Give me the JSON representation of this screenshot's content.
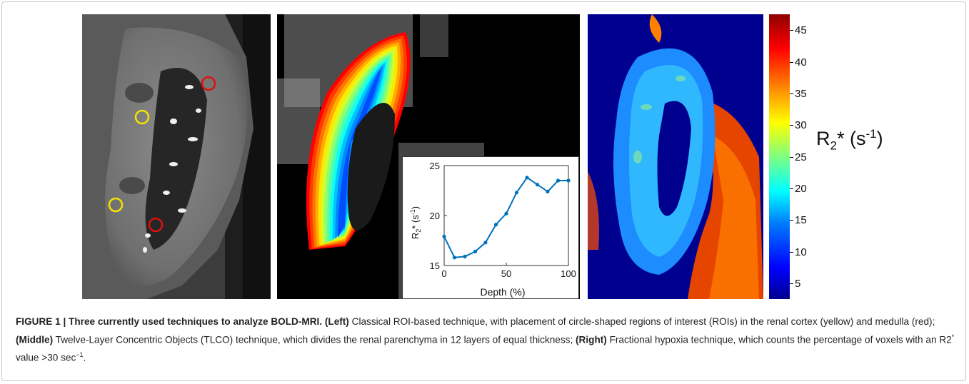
{
  "colorbar": {
    "ticks": [
      "45",
      "40",
      "35",
      "30",
      "25",
      "20",
      "15",
      "10",
      "5"
    ],
    "label_main": "R",
    "label_sub": "2",
    "label_mid": "* (s",
    "label_sup": "-1",
    "label_end": ")"
  },
  "inset_chart": {
    "xlabel": "Depth (%)",
    "ylabel_main": "R",
    "ylabel_sub": "2",
    "ylabel_mid": "* (s",
    "ylabel_sup": "-1",
    "ylabel_end": ")",
    "xticks": [
      "0",
      "50",
      "100"
    ],
    "yticks": [
      "15",
      "20",
      "25"
    ]
  },
  "chart_data": {
    "type": "line",
    "x": [
      0,
      8.3,
      16.7,
      25,
      33.3,
      41.7,
      50,
      58.3,
      66.7,
      75,
      83.3,
      91.7,
      100
    ],
    "series": [
      {
        "values": [
          17.9,
          15.8,
          15.9,
          16.4,
          17.3,
          19.1,
          20.2,
          22.3,
          23.8,
          23.1,
          22.4,
          23.5,
          23.5
        ]
      }
    ],
    "xlabel": "Depth (%)",
    "ylabel": "R2* (s-1)",
    "xlim": [
      0,
      100
    ],
    "ylim": [
      15,
      25
    ],
    "color": "#0072bd"
  },
  "caption": {
    "lead": "FIGURE 1 | Three currently used techniques to analyze BOLD-MRI.",
    "left_tag": "(Left)",
    "left_text": " Classical ROI-based technique, with placement of circle-shaped regions of interest (ROIs) in the renal cortex (yellow) and medulla (red); ",
    "middle_tag": "(Middle)",
    "middle_text": " Twelve-Layer Concentric Objects (TLCO) technique, which divides the renal parenchyma in 12 layers of equal thickness; ",
    "right_tag": "(Right)",
    "right_text": " Fractional hypoxia technique, which counts the percentage of voxels with an R2",
    "right_sup": "*",
    "right_text2": " value >30 sec",
    "right_sup2": "−1",
    "right_end": "."
  },
  "colors": {
    "roi_cortex": "#f5e400",
    "roi_medulla": "#e01010"
  }
}
